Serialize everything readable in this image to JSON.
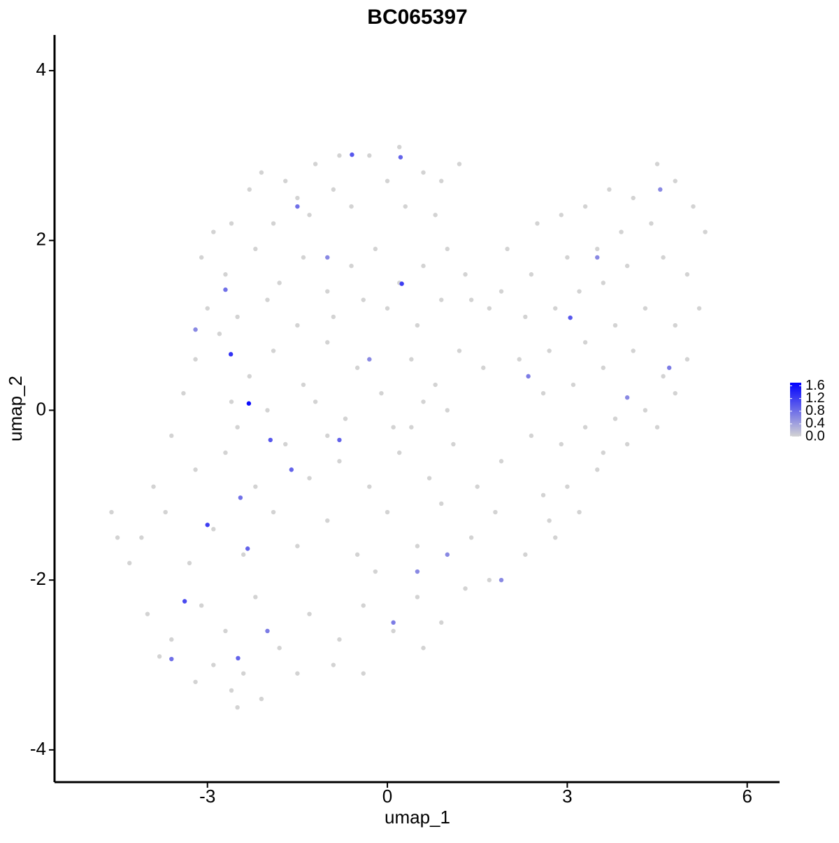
{
  "chart_data": {
    "type": "scatter",
    "title": "BC065397",
    "xlabel": "umap_1",
    "ylabel": "umap_2",
    "xlim": [
      -5.55,
      6.54
    ],
    "ylim": [
      -4.38,
      4.42
    ],
    "xticks": [
      -3,
      0,
      3,
      6
    ],
    "yticks": [
      -4,
      -2,
      0,
      2,
      4
    ],
    "colors": [
      "#d3d3d3",
      "#0000ff"
    ],
    "colorlim": [
      0,
      1.7
    ],
    "colorticks": [
      {
        "value": 0,
        "label": "0.0"
      },
      {
        "value": 0.4,
        "label": "0.4"
      },
      {
        "value": 0.8,
        "label": "0.8"
      },
      {
        "value": 1.2,
        "label": "1.2"
      },
      {
        "value": 1.6,
        "label": "1.6"
      }
    ],
    "x": [
      -2.1,
      -1.7,
      -1.2,
      -0.8,
      -0.3,
      0.2,
      0.6,
      -1.5,
      -0.9,
      0.0,
      0.9,
      -2.3,
      -2.6,
      -1.9,
      -1.3,
      -0.6,
      0.3,
      0.8,
      1.2,
      -2.9,
      -3.1,
      -2.7,
      -2.2,
      -1.8,
      -1.4,
      -1.0,
      -0.6,
      -0.2,
      0.2,
      0.6,
      1.0,
      1.4,
      -3.0,
      -2.5,
      -2.0,
      -1.5,
      -0.9,
      -0.4,
      0.0,
      0.5,
      0.9,
      1.3,
      1.7,
      -3.2,
      -2.8,
      -2.3,
      -1.9,
      -1.4,
      -1.0,
      -0.5,
      -0.1,
      0.4,
      0.8,
      1.2,
      1.6,
      -3.4,
      -2.6,
      -2.0,
      -1.2,
      -0.7,
      0.1,
      0.6,
      1.0,
      -3.6,
      -3.2,
      -2.7,
      -2.2,
      -1.7,
      -1.3,
      -0.8,
      -0.3,
      0.2,
      0.7,
      1.1,
      1.5,
      1.9,
      -3.9,
      -2.5,
      -1.0,
      0.4,
      -4.1,
      -3.7,
      -3.3,
      -2.9,
      -2.4,
      -1.9,
      -1.5,
      -1.0,
      -0.5,
      0.0,
      0.5,
      0.9,
      1.4,
      1.8,
      2.3,
      2.7,
      -4.6,
      -4.5,
      -4.3,
      -0.2,
      -4.0,
      -3.6,
      -3.1,
      -2.7,
      -2.2,
      -1.8,
      -1.3,
      -0.8,
      -0.4,
      0.1,
      0.5,
      0.9,
      1.3,
      1.7,
      -3.8,
      -2.9,
      -2.4,
      0.6,
      -3.2,
      -2.6,
      -2.1,
      -2.5,
      -1.5,
      -0.9,
      -0.4,
      2.0,
      2.5,
      2.9,
      3.3,
      3.7,
      4.1,
      4.5,
      4.8,
      5.1,
      5.3,
      4.4,
      3.9,
      3.5,
      3.0,
      2.4,
      1.9,
      2.3,
      2.8,
      3.2,
      3.6,
      4.0,
      4.6,
      5.0,
      5.2,
      4.8,
      4.3,
      3.8,
      3.3,
      2.7,
      2.2,
      2.6,
      3.1,
      3.6,
      4.1,
      4.6,
      5.0,
      4.8,
      4.3,
      3.8,
      3.3,
      2.9,
      2.4,
      4.0,
      3.5,
      3.0,
      2.6,
      3.2,
      2.8,
      3.6,
      4.5,
      -2.31,
      -2.61,
      -3.0,
      -3.38,
      0.24,
      3.05,
      -0.59,
      -1.95,
      -2.33,
      -2.49,
      0.22,
      -2.7,
      -1.5,
      -0.8,
      -2.45,
      -3.6,
      -1.6,
      0.1,
      2.35,
      4.7,
      4.55,
      3.5,
      -0.3,
      1.0,
      -2.0,
      4.0,
      -1.0,
      0.5,
      -3.2,
      1.9
    ],
    "y": [
      2.8,
      2.7,
      2.9,
      3.0,
      3.0,
      3.1,
      2.8,
      2.5,
      2.6,
      2.7,
      2.7,
      2.6,
      2.2,
      2.2,
      2.3,
      2.4,
      2.4,
      2.3,
      2.9,
      2.1,
      1.8,
      1.6,
      1.9,
      1.5,
      1.8,
      1.4,
      1.7,
      1.9,
      1.5,
      1.7,
      1.9,
      1.3,
      1.2,
      1.1,
      1.3,
      1.0,
      1.1,
      1.3,
      1.2,
      1.0,
      1.3,
      1.6,
      1.2,
      0.6,
      0.9,
      0.4,
      0.7,
      0.3,
      0.8,
      0.5,
      0.2,
      0.6,
      0.3,
      0.7,
      0.5,
      0.2,
      0.1,
      0.0,
      0.1,
      -0.1,
      -0.2,
      0.1,
      0.0,
      -0.3,
      -0.7,
      -0.5,
      -0.9,
      -0.4,
      -0.8,
      -0.6,
      -0.9,
      -0.5,
      -0.8,
      -0.4,
      -0.9,
      -0.6,
      -0.9,
      -0.2,
      -0.3,
      -0.2,
      -1.5,
      -1.2,
      -1.8,
      -1.4,
      -1.7,
      -1.2,
      -1.6,
      -1.3,
      -1.7,
      -1.2,
      -1.6,
      -1.1,
      -1.5,
      -1.2,
      -1.7,
      -1.3,
      -1.2,
      -1.5,
      -1.8,
      -1.9,
      -2.4,
      -2.7,
      -2.3,
      -2.6,
      -2.2,
      -2.8,
      -2.4,
      -2.7,
      -2.3,
      -2.6,
      -2.2,
      -2.5,
      -2.1,
      -2.0,
      -2.9,
      -3.0,
      -3.1,
      -2.8,
      -3.2,
      -3.3,
      -3.4,
      -3.5,
      -3.1,
      -3.0,
      -3.1,
      1.9,
      2.2,
      2.3,
      2.4,
      2.6,
      2.5,
      2.9,
      2.7,
      2.4,
      2.1,
      2.2,
      2.1,
      1.9,
      1.8,
      1.6,
      1.4,
      1.1,
      1.2,
      1.4,
      1.5,
      1.7,
      1.8,
      1.6,
      1.2,
      1.0,
      1.2,
      1.0,
      0.8,
      0.7,
      0.6,
      0.2,
      0.3,
      0.5,
      0.7,
      0.4,
      0.6,
      0.2,
      0.0,
      -0.1,
      -0.2,
      -0.4,
      -0.3,
      -0.4,
      -0.7,
      -0.9,
      -1.0,
      -1.2,
      -1.5,
      -0.5,
      -0.2,
      0.08,
      0.66,
      -1.35,
      -2.25,
      1.49,
      1.09,
      3.01,
      -0.35,
      -1.63,
      -2.92,
      2.98,
      1.42,
      2.4,
      -0.35,
      -1.03,
      -2.93,
      -0.7,
      -2.5,
      0.4,
      0.5,
      2.6,
      1.8,
      0.6,
      -1.7,
      -2.6,
      0.15,
      1.8,
      -1.9,
      0.95,
      -2.0
    ],
    "values": [
      0,
      0,
      0,
      0,
      0,
      0,
      0,
      0,
      0,
      0,
      0,
      0,
      0,
      0,
      0,
      0,
      0,
      0,
      0,
      0,
      0,
      0,
      0,
      0,
      0,
      0,
      0,
      0,
      0,
      0,
      0,
      0,
      0,
      0,
      0,
      0,
      0,
      0,
      0,
      0,
      0,
      0,
      0,
      0,
      0,
      0,
      0,
      0,
      0,
      0,
      0,
      0,
      0,
      0,
      0,
      0,
      0,
      0,
      0,
      0,
      0,
      0,
      0,
      0,
      0,
      0,
      0,
      0,
      0,
      0,
      0,
      0,
      0,
      0,
      0,
      0,
      0,
      0,
      0,
      0,
      0,
      0,
      0,
      0,
      0,
      0,
      0,
      0,
      0,
      0,
      0,
      0,
      0,
      0,
      0,
      0,
      0,
      0,
      0,
      0,
      0,
      0,
      0,
      0,
      0,
      0,
      0,
      0,
      0,
      0,
      0,
      0,
      0,
      0,
      0,
      0,
      0,
      0,
      0,
      0,
      0,
      0,
      0,
      0,
      0,
      0,
      0,
      0,
      0,
      0,
      0,
      0,
      0,
      0,
      0,
      0,
      0,
      0,
      0,
      0,
      0,
      0,
      0,
      0,
      0,
      0,
      0,
      0,
      0,
      0,
      0,
      0,
      0,
      0,
      0,
      0,
      0,
      0,
      0,
      0,
      0,
      0,
      0,
      0,
      0,
      0,
      0,
      0,
      0,
      0,
      0,
      0,
      0,
      0,
      0,
      1.6,
      1.3,
      1.2,
      1.1,
      1.2,
      1.0,
      1.0,
      1.0,
      0.9,
      0.9,
      0.9,
      0.8,
      0.8,
      0.9,
      0.8,
      0.8,
      0.9,
      0.7,
      0.7,
      0.7,
      0.6,
      0.6,
      0.6,
      0.6,
      0.7,
      0.6,
      0.6,
      0.6,
      0.6,
      0.6
    ]
  }
}
